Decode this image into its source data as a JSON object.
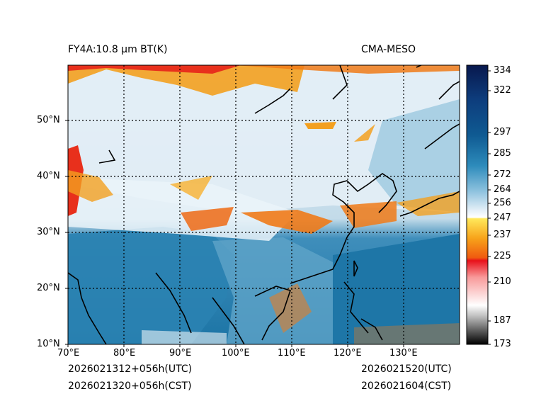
{
  "header": {
    "left_title": "FY4A:10.8 μm BT(K)",
    "right_title": "CMA-MESO"
  },
  "footer": {
    "init_utc": "2026021312+056h(UTC)",
    "init_cst": "2026021320+056h(CST)",
    "valid_utc": "2026021520(UTC)",
    "valid_cst": "2026021604(CST)"
  },
  "map": {
    "lon_ticks": [
      "70°E",
      "80°E",
      "90°E",
      "100°E",
      "110°E",
      "120°E",
      "130°E"
    ],
    "lat_ticks": [
      "10°N",
      "20°N",
      "30°N",
      "40°N",
      "50°N"
    ],
    "lon_range": [
      70,
      140
    ],
    "lat_range": [
      10,
      60
    ]
  },
  "colorbar": {
    "labels": [
      "334",
      "322",
      "297",
      "285",
      "272",
      "264",
      "256",
      "247",
      "237",
      "225",
      "210",
      "187",
      "173"
    ],
    "range": [
      173,
      336
    ]
  },
  "colors": {
    "ocean_warm": "#1f78a8",
    "land_mid": "#7fb6d3",
    "cloud_cool": "#dbe8f2",
    "cloud_high": "#f3a020",
    "cloud_very_high": "#e8301c",
    "coast": "#000000"
  }
}
